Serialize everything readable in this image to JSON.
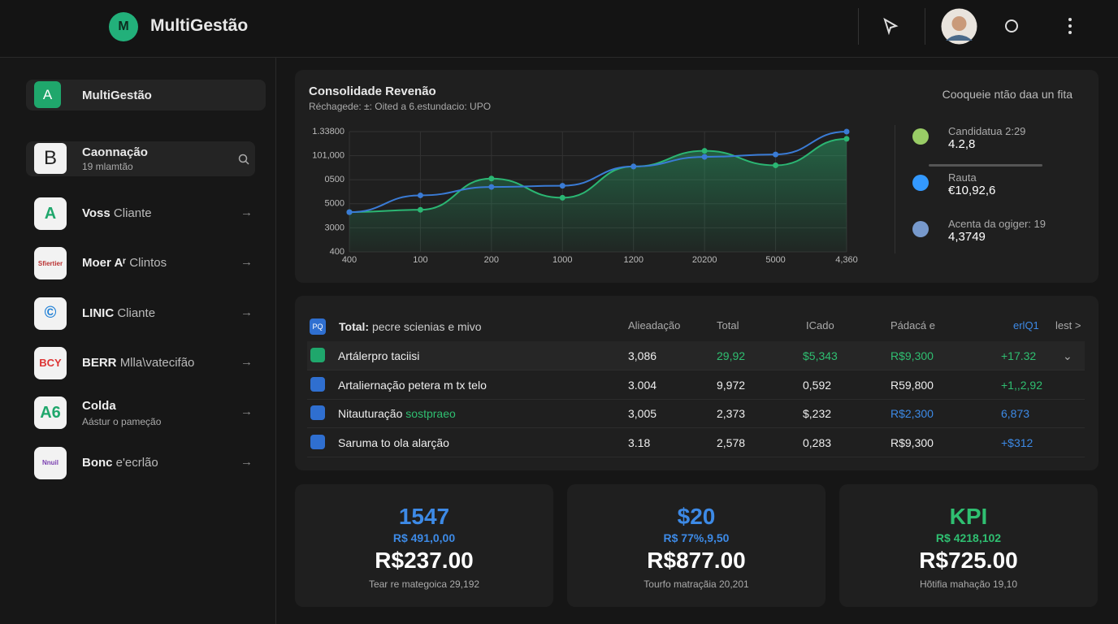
{
  "header": {
    "brand": "MultiGestão"
  },
  "sidebar": {
    "top": {
      "icon": "A",
      "label": "MultiGestão"
    },
    "search": {
      "icon": "B",
      "title": "Caonnação",
      "subtitle": "19 mlamtão"
    },
    "clients": [
      {
        "icon": "A",
        "name": "Voss",
        "suffix": "Cliante"
      },
      {
        "icon": "Sfiertier",
        "name": "Moer Aʳ",
        "suffix": "Clintos"
      },
      {
        "icon": "©",
        "name": "LINIC",
        "suffix": "Cliante"
      },
      {
        "icon": "BCY",
        "name": "BERR",
        "suffix": "Mlla\\vatecifão"
      },
      {
        "icon": "A6",
        "name": "Colda",
        "subtitle": "Aástur o pameção"
      },
      {
        "icon": "Nnuil",
        "name": "Bonc",
        "suffix": "e'ecrlão"
      }
    ]
  },
  "chart_panel": {
    "note": "Cooqueie ntão daa un fita",
    "stats": [
      {
        "label": "Candidatua 2:29",
        "value": "4.2,8"
      },
      {
        "label": "Rauta",
        "value": "€10,92,6"
      },
      {
        "label": "Acenta da ogiger: 19",
        "value": "4,3749"
      }
    ]
  },
  "chart_data": {
    "type": "line",
    "title": "Consolidade Revenão",
    "subtitle": "Réchagede: ±: Oited a 6.estundacio: UPO",
    "categories": [
      "400",
      "100",
      "200",
      "1000",
      "1200",
      "20200",
      "5000",
      "4,360"
    ],
    "series": [
      {
        "name": "A",
        "color": "#2bb673",
        "values": [
          1.65,
          1.75,
          3.05,
          2.25,
          3.55,
          4.2,
          3.6,
          4.7
        ]
      },
      {
        "name": "B",
        "color": "#3a7bd5",
        "values": [
          1.65,
          2.35,
          2.7,
          2.75,
          3.55,
          3.95,
          4.05,
          5.0
        ]
      }
    ],
    "ylim": [
      0,
      5
    ],
    "yticks": [
      {
        "value": 0,
        "label": "400"
      },
      {
        "value": 1,
        "label": "3000"
      },
      {
        "value": 2,
        "label": "5000"
      },
      {
        "value": 3,
        "label": "0500"
      },
      {
        "value": 4,
        "label": "101,000"
      },
      {
        "value": 5,
        "label": "1.33800"
      }
    ],
    "grid": true
  },
  "table": {
    "icon": "PQ",
    "title_bold": "Total:",
    "title_rest": "pecre scienias e mivo",
    "columns": [
      "Alieadação",
      "Total",
      "ICado",
      "Pádacá e",
      "erlQ1",
      "lest >"
    ],
    "rows": [
      {
        "name": "Artálerpro taciisi",
        "cells": [
          "3,086",
          "29,92",
          "$5,343",
          "R$9,300",
          "+17.32"
        ]
      },
      {
        "name": "Artaliernação petera m tx telo",
        "cells": [
          "3.004",
          "9,972",
          "0,592",
          "R59,800",
          "+1,,2,92"
        ]
      },
      {
        "name": "Nitauturação",
        "tag": "sostpraeo",
        "cells": [
          "3,005",
          "2,373",
          "$,232",
          "R$2,300",
          "6,873"
        ]
      },
      {
        "name": "Saruma to ola alarção",
        "cells": [
          "3.18",
          "2,578",
          "0,283",
          "R$9,300",
          "+$312"
        ]
      }
    ]
  },
  "kpis": [
    {
      "headline": "1547",
      "sub": "R$ 491,0,00",
      "amount": "R$237.00",
      "note": "Tear re mategoica 29,192"
    },
    {
      "headline": "$20",
      "sub": "R$ 77%,9,50",
      "amount": "R$877.00",
      "note": "Tourfo matraçãia 20,201"
    },
    {
      "headline": "KPI",
      "sub": "R$ 4218,102",
      "amount": "R$725.00",
      "note": "Hõtifia mahação 19,10"
    }
  ]
}
